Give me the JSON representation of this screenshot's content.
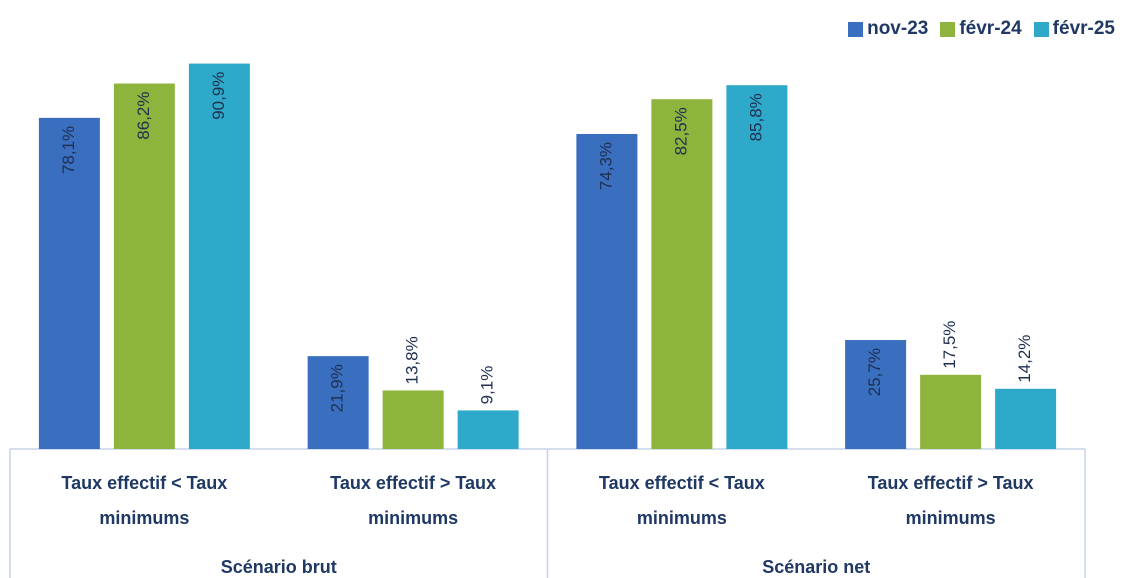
{
  "chart_data": {
    "type": "bar",
    "categories": [
      "Taux effectif < Taux minimums",
      "Taux effectif > Taux minimums",
      "Taux effectif < Taux minimums",
      "Taux effectif > Taux minimums"
    ],
    "groups": [
      {
        "label": "Scénario brut",
        "size": 2
      },
      {
        "label": "Scénario net",
        "size": 2
      }
    ],
    "series": [
      {
        "name": "nov-23",
        "color": "#3a6fc0",
        "values": [
          78.1,
          21.9,
          74.3,
          25.7
        ],
        "value_labels": [
          "78,1%",
          "21,9%",
          "74,3%",
          "25,7%"
        ]
      },
      {
        "name": "févr-24",
        "color": "#8db43c",
        "values": [
          86.2,
          13.8,
          82.5,
          17.5
        ],
        "value_labels": [
          "86,2%",
          "13,8%",
          "82,5%",
          "17,5%"
        ]
      },
      {
        "name": "févr-25",
        "color": "#2ea9c9",
        "values": [
          90.9,
          9.1,
          85.8,
          14.2
        ],
        "value_labels": [
          "90,9%",
          "9,1%",
          "85,8%",
          "14,2%"
        ]
      }
    ],
    "ylim": [
      0,
      100
    ],
    "legend": "top-right"
  }
}
